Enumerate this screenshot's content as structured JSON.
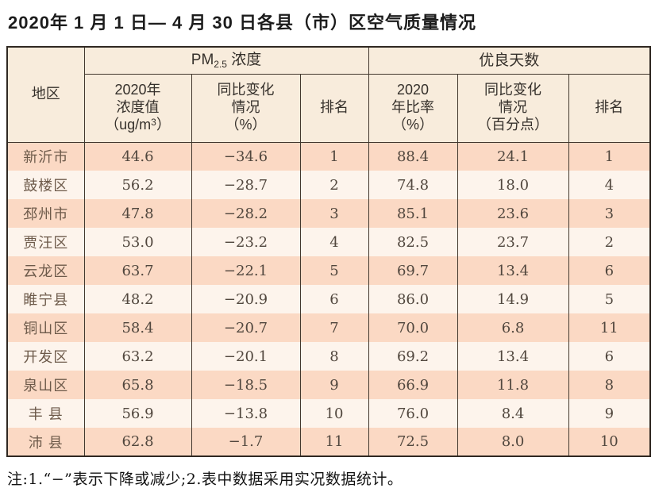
{
  "title": "2020年 1 月 1 日— 4 月 30 日各县（市）区空气质量情况",
  "colors": {
    "header_bg": "#f8ecdc",
    "row_pink": "#fbd9c4",
    "row_light": "#fdf4ec",
    "border": "#43382e",
    "region_text": "#6d5a4a",
    "number_text": "#51473e"
  },
  "table": {
    "header": {
      "region": "地区",
      "pm_group": {
        "prefix": "PM",
        "sub": "2.5",
        "suffix": " 浓度"
      },
      "good_group": "优良天数",
      "pm_value": {
        "line1": "2020年",
        "line2": "浓度值",
        "unit_prefix": "（ug/m",
        "unit_sup": "3",
        "unit_suffix": "）"
      },
      "pm_change": {
        "line1": "同比变化",
        "line2": "情况",
        "line3": "（%）"
      },
      "pm_rank": "排名",
      "good_ratio": {
        "line1": "2020",
        "line2": "年比率",
        "line3": "（%）"
      },
      "good_change": {
        "line1": "同比变化",
        "line2": "情况",
        "line3": "（百分点）"
      },
      "good_rank": "排名"
    },
    "rows": [
      {
        "region": "新沂市",
        "pm_value": "44.6",
        "pm_change": "−34.6",
        "pm_rank": "1",
        "good_ratio": "88.4",
        "good_change": "24.1",
        "good_rank": "1"
      },
      {
        "region": "鼓楼区",
        "pm_value": "56.2",
        "pm_change": "−28.7",
        "pm_rank": "2",
        "good_ratio": "74.8",
        "good_change": "18.0",
        "good_rank": "4"
      },
      {
        "region": "邳州市",
        "pm_value": "47.8",
        "pm_change": "−28.2",
        "pm_rank": "3",
        "good_ratio": "85.1",
        "good_change": "23.6",
        "good_rank": "3"
      },
      {
        "region": "贾汪区",
        "pm_value": "53.0",
        "pm_change": "−23.2",
        "pm_rank": "4",
        "good_ratio": "82.5",
        "good_change": "23.7",
        "good_rank": "2"
      },
      {
        "region": "云龙区",
        "pm_value": "63.7",
        "pm_change": "−22.1",
        "pm_rank": "5",
        "good_ratio": "69.7",
        "good_change": "13.4",
        "good_rank": "6"
      },
      {
        "region": "睢宁县",
        "pm_value": "48.2",
        "pm_change": "−20.9",
        "pm_rank": "6",
        "good_ratio": "86.0",
        "good_change": "14.9",
        "good_rank": "5"
      },
      {
        "region": "铜山区",
        "pm_value": "58.4",
        "pm_change": "−20.7",
        "pm_rank": "7",
        "good_ratio": "70.0",
        "good_change": "6.8",
        "good_rank": "11"
      },
      {
        "region": "开发区",
        "pm_value": "63.2",
        "pm_change": "−20.1",
        "pm_rank": "8",
        "good_ratio": "69.2",
        "good_change": "13.4",
        "good_rank": "6"
      },
      {
        "region": "泉山区",
        "pm_value": "65.8",
        "pm_change": "−18.5",
        "pm_rank": "9",
        "good_ratio": "66.9",
        "good_change": "11.8",
        "good_rank": "8"
      },
      {
        "region": "丰 县",
        "pm_value": "56.9",
        "pm_change": "−13.8",
        "pm_rank": "10",
        "good_ratio": "76.0",
        "good_change": "8.4",
        "good_rank": "9"
      },
      {
        "region": "沛 县",
        "pm_value": "62.8",
        "pm_change": "−1.7",
        "pm_rank": "11",
        "good_ratio": "72.5",
        "good_change": "8.0",
        "good_rank": "10"
      }
    ]
  },
  "footnote": "注:1.“−”表示下降或减少;2.表中数据采用实况数据统计。"
}
